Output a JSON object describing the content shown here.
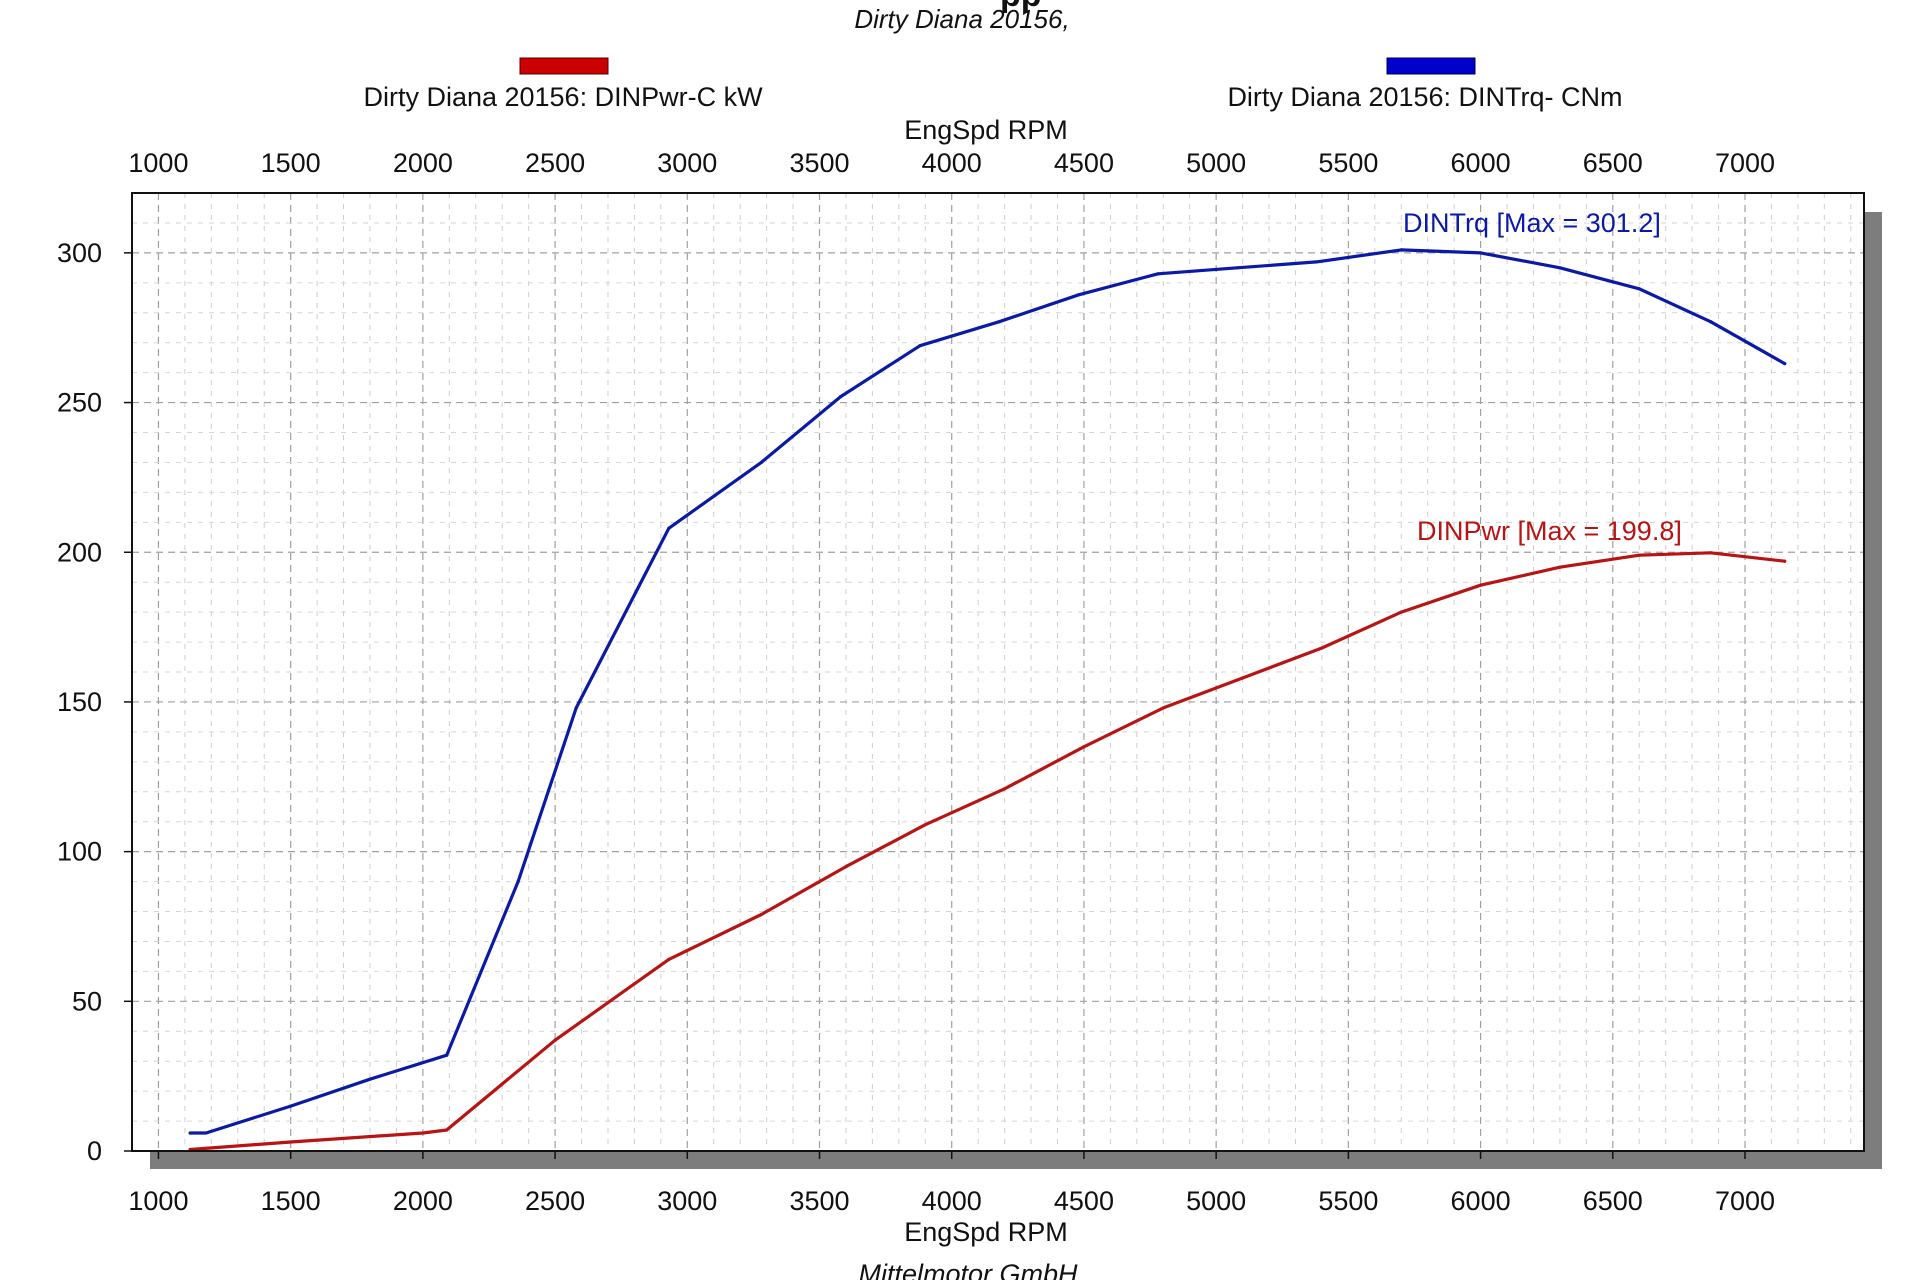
{
  "header": {
    "title_fragment": "pp",
    "subtitle": "Dirty Diana 20156,"
  },
  "footer": {
    "credit": "Mittelmotor GmbH"
  },
  "legend": [
    {
      "label": "Dirty Diana 20156: DINPwr-C kW",
      "color": "#cc0000"
    },
    {
      "label": "Dirty Diana 20156: DINTrq- CNm",
      "color": "#0000cc"
    }
  ],
  "chart_data": {
    "type": "line",
    "xlabel_top": "EngSpd  RPM",
    "xlabel_bottom": "EngSpd  RPM",
    "ylabel": "",
    "xlim": [
      900,
      7450
    ],
    "ylim": [
      0,
      320
    ],
    "xticks": [
      1000,
      1500,
      2000,
      2500,
      3000,
      3500,
      4000,
      4500,
      5000,
      5500,
      6000,
      6500,
      7000
    ],
    "yticks": [
      0,
      50,
      100,
      150,
      200,
      250,
      300
    ],
    "grid": true,
    "legend_position": "top",
    "series": [
      {
        "key": "power",
        "color": "#b81414",
        "annotation": "DINPwr [Max = 199.8]",
        "points": [
          [
            1120,
            0.5
          ],
          [
            1500,
            3
          ],
          [
            2000,
            6
          ],
          [
            2090,
            7
          ],
          [
            2500,
            37
          ],
          [
            2930,
            64
          ],
          [
            3280,
            79
          ],
          [
            3600,
            95
          ],
          [
            3900,
            109
          ],
          [
            4200,
            121
          ],
          [
            4500,
            135
          ],
          [
            4800,
            148
          ],
          [
            5100,
            158
          ],
          [
            5400,
            168
          ],
          [
            5700,
            180
          ],
          [
            6000,
            189
          ],
          [
            6300,
            195
          ],
          [
            6600,
            199
          ],
          [
            6870,
            199.8
          ],
          [
            7150,
            197
          ]
        ]
      },
      {
        "key": "torque",
        "color": "#0a1aa6",
        "annotation": "DINTrq [Max = 301.2]",
        "points": [
          [
            1120,
            6
          ],
          [
            1180,
            6
          ],
          [
            1500,
            15
          ],
          [
            1800,
            24
          ],
          [
            2090,
            32
          ],
          [
            2360,
            90
          ],
          [
            2580,
            148
          ],
          [
            2930,
            208
          ],
          [
            3280,
            230
          ],
          [
            3580,
            252
          ],
          [
            3880,
            269
          ],
          [
            4180,
            277
          ],
          [
            4480,
            286
          ],
          [
            4780,
            293
          ],
          [
            5080,
            295
          ],
          [
            5380,
            297
          ],
          [
            5700,
            301
          ],
          [
            6000,
            300
          ],
          [
            6300,
            295
          ],
          [
            6600,
            288
          ],
          [
            6870,
            277
          ],
          [
            7150,
            263
          ]
        ]
      }
    ]
  }
}
